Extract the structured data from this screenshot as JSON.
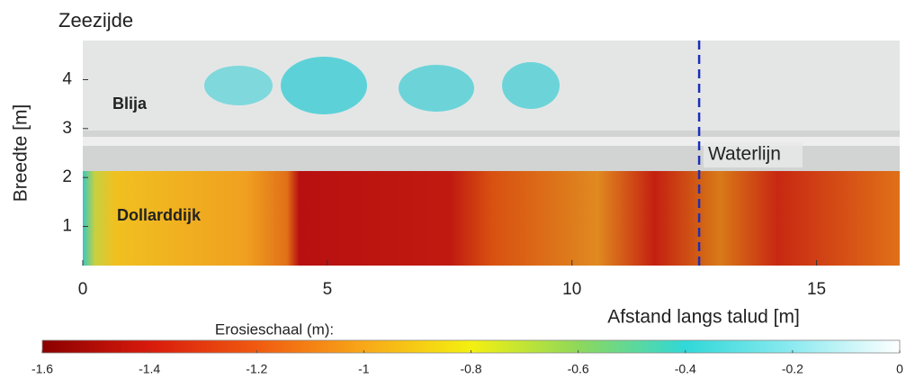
{
  "chart_data": {
    "type": "image",
    "title": "Zeezijde",
    "x_label": "Afstand langs talud [m]",
    "y_label": "Breedte [m]",
    "xlim": [
      0,
      16.7
    ],
    "ylim": [
      0.2,
      4.8
    ],
    "xticks": [
      0,
      5,
      10,
      15
    ],
    "yticks": [
      1,
      2,
      3,
      4
    ],
    "annotations": [
      "Blija",
      "Dollarddijk",
      "Waterlijn"
    ],
    "waterline_x": 12.6,
    "waterline_color": "#1a2fb8",
    "colorbar": {
      "label": "Erosieschaal (m):",
      "lim": [
        -1.6,
        0
      ],
      "ticks": [
        -1.6,
        -1.4,
        -1.2,
        -1,
        -0.8,
        -0.6,
        -0.4,
        -0.2,
        0
      ],
      "colors": [
        "#8b0000",
        "#d81a0c",
        "#f05a10",
        "#f8a818",
        "#f4f010",
        "#8ed85a",
        "#30d8d8",
        "#8ceaf0",
        "#ffffff"
      ]
    }
  }
}
